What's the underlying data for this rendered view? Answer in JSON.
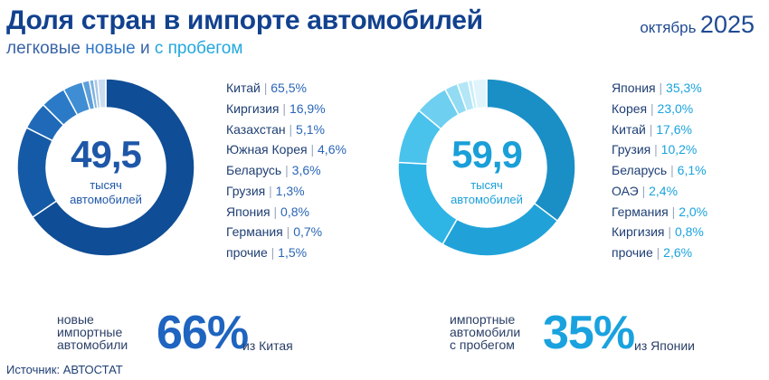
{
  "header": {
    "title": "Доля стран в импорте автомобилей",
    "subtitle_a": "легковые ",
    "subtitle_new": "новые",
    "subtitle_and": " и ",
    "subtitle_used": "с пробегом",
    "period_month": "октябрь",
    "period_year": "2025"
  },
  "colors": {
    "new_series": [
      "#0f4d96",
      "#155aa6",
      "#1f69b8",
      "#2b7ac8",
      "#3f8dd3",
      "#5d9fd9",
      "#7fb3e0",
      "#a4c7e7",
      "#c9ddf1"
    ],
    "used_series": [
      "#1a8fc6",
      "#20a2d9",
      "#2fb4e6",
      "#49c2ec",
      "#6fcff0",
      "#92dbf3",
      "#b3e6f6",
      "#c9eef9",
      "#dff5fb"
    ]
  },
  "chart_data": [
    {
      "type": "pie",
      "title": "новые",
      "center_value": "49,5",
      "center_unit_line1": "тысяч",
      "center_unit_line2": "автомобилей",
      "legend": [
        {
          "label": "Китай",
          "value_text": "65,5%",
          "value": 65.5
        },
        {
          "label": "Киргизия",
          "value_text": "16,9%",
          "value": 16.9
        },
        {
          "label": "Казахстан",
          "value_text": "5,1%",
          "value": 5.1
        },
        {
          "label": "Южная Корея",
          "value_text": "4,6%",
          "value": 4.6
        },
        {
          "label": "Беларусь",
          "value_text": "3,6%",
          "value": 3.6
        },
        {
          "label": "Грузия",
          "value_text": "1,3%",
          "value": 1.3
        },
        {
          "label": "Япония",
          "value_text": "0,8%",
          "value": 0.8
        },
        {
          "label": "Германия",
          "value_text": "0,7%",
          "value": 0.7
        },
        {
          "label": "прочие",
          "value_text": "1,5%",
          "value": 1.5
        }
      ]
    },
    {
      "type": "pie",
      "title": "с пробегом",
      "center_value": "59,9",
      "center_unit_line1": "тысяч",
      "center_unit_line2": "автомобилей",
      "legend": [
        {
          "label": "Япония",
          "value_text": "35,3%",
          "value": 35.3
        },
        {
          "label": "Корея",
          "value_text": "23,0%",
          "value": 23.0
        },
        {
          "label": "Китай",
          "value_text": "17,6%",
          "value": 17.6
        },
        {
          "label": "Грузия",
          "value_text": "10,2%",
          "value": 10.2
        },
        {
          "label": "Беларусь",
          "value_text": "6,1%",
          "value": 6.1
        },
        {
          "label": "ОАЭ",
          "value_text": "2,4%",
          "value": 2.4
        },
        {
          "label": "Германия",
          "value_text": "2,0%",
          "value": 2.0
        },
        {
          "label": "Киргизия",
          "value_text": "0,8%",
          "value": 0.8
        },
        {
          "label": "прочие",
          "value_text": "2,6%",
          "value": 2.6
        }
      ]
    }
  ],
  "stats": {
    "new": {
      "line1": "новые",
      "line2": "импортные",
      "line3": "автомобили",
      "big": "66%",
      "tail": "из Китая"
    },
    "used": {
      "line1": "импортные",
      "line2": "автомобили",
      "line3": "с пробегом",
      "big": "35%",
      "tail": "из Японии"
    }
  },
  "source": "Источник: АВТОСТАТ",
  "separator": "|"
}
